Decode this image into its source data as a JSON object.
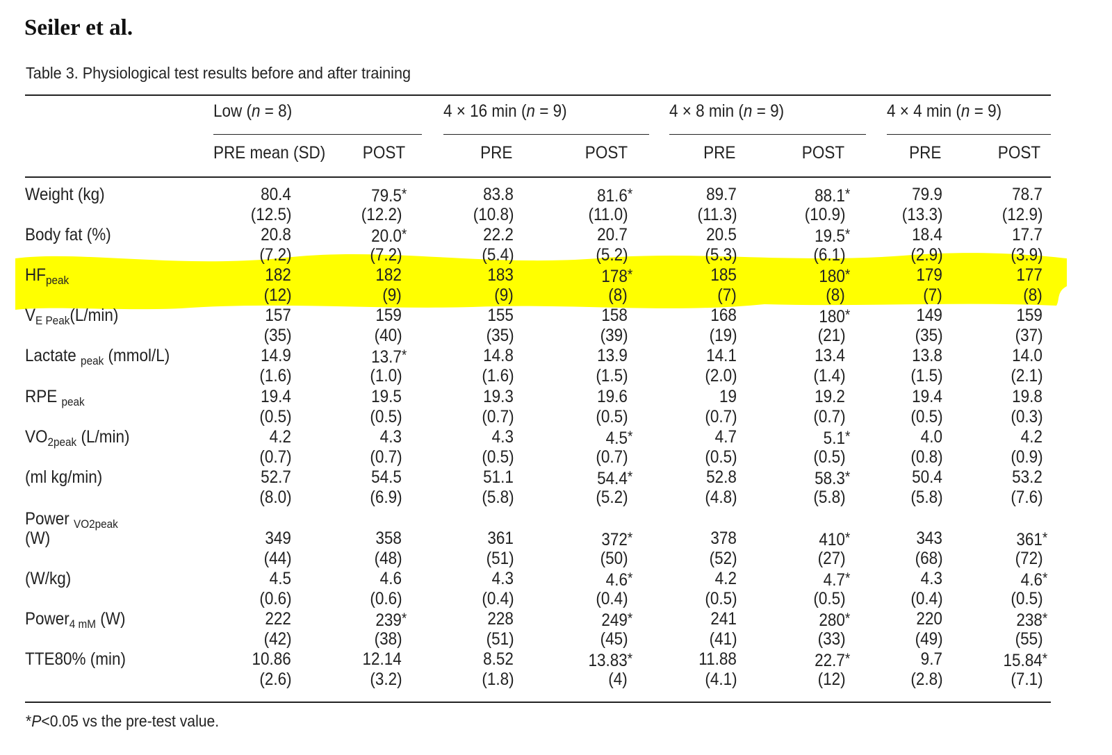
{
  "header": "Seiler et al.",
  "caption": "Table 3.  Physiological test results before and after training",
  "colors": {
    "highlight": "#ffff00",
    "text": "#222222"
  },
  "table": {
    "groups": [
      {
        "prefix": "Low",
        "n": "8"
      },
      {
        "prefix": "4 × 16 min",
        "n": "9"
      },
      {
        "prefix": "4 × 8 min",
        "n": "9"
      },
      {
        "prefix": "4 × 4 min",
        "n": "9"
      }
    ],
    "subheaders": [
      "PRE mean (SD)",
      "POST",
      "PRE",
      "POST",
      "PRE",
      "POST",
      "PRE",
      "POST"
    ],
    "rows": [
      {
        "label": [
          {
            "t": "Weight (kg)"
          }
        ],
        "mean": [
          "80.4",
          "79.5*",
          "83.8",
          "81.6*",
          "89.7",
          "88.1*",
          "79.9",
          "78.7"
        ],
        "sd": [
          "(12.5)",
          "(12.2)",
          "(10.8)",
          "(11.0)",
          "(11.3)",
          "(10.9)",
          "(13.3)",
          "(12.9)"
        ]
      },
      {
        "label": [
          {
            "t": "Body fat (%)"
          }
        ],
        "mean": [
          "20.8",
          "20.0*",
          "22.2",
          "20.7",
          "20.5",
          "19.5*",
          "18.4",
          "17.7"
        ],
        "sd": [
          "(7.2)",
          "(7.2)",
          "(5.4)",
          "(5.2)",
          "(5.3)",
          "(6.1)",
          "(2.9)",
          "(3.9)"
        ]
      },
      {
        "label": [
          {
            "t": "HF"
          },
          {
            "t": "peak",
            "s": "low"
          }
        ],
        "mean": [
          "182",
          "182",
          "183",
          "178*",
          "185",
          "180*",
          "179",
          "177"
        ],
        "sd": [
          "(12)",
          "(9)",
          "(9)",
          "(8)",
          "(7)",
          "(8)",
          "(7)",
          "(8)"
        ]
      },
      {
        "label": [
          {
            "t": "V"
          },
          {
            "t": "E  Peak",
            "s": "low"
          },
          {
            "t": "(L/min)"
          }
        ],
        "mean": [
          "157",
          "159",
          "155",
          "158",
          "168",
          "180*",
          "149",
          "159"
        ],
        "sd": [
          "(35)",
          "(40)",
          "(35)",
          "(39)",
          "(19)",
          "(21)",
          "(35)",
          "(37)"
        ]
      },
      {
        "label": [
          {
            "t": "Lactate "
          },
          {
            "t": "peak",
            "s": "low"
          },
          {
            "t": " (mmol/L)"
          }
        ],
        "mean": [
          "14.9",
          "13.7*",
          "14.8",
          "13.9",
          "14.1",
          "13.4",
          "13.8",
          "14.0"
        ],
        "sd": [
          "(1.6)",
          "(1.0)",
          "(1.6)",
          "(1.5)",
          "(2.0)",
          "(1.4)",
          "(1.5)",
          "(2.1)"
        ]
      },
      {
        "label": [
          {
            "t": "RPE "
          },
          {
            "t": "peak",
            "s": "low"
          }
        ],
        "mean": [
          "19.4",
          "19.5",
          "19.3",
          "19.6",
          "19",
          "19.2",
          "19.4",
          "19.8"
        ],
        "sd": [
          "(0.5)",
          "(0.5)",
          "(0.7)",
          "(0.5)",
          "(0.7)",
          "(0.7)",
          "(0.5)",
          "(0.3)"
        ]
      },
      {
        "label": [
          {
            "t": "VO"
          },
          {
            "t": "2peak",
            "s": "low"
          },
          {
            "t": " (L/min)"
          }
        ],
        "mean": [
          "4.2",
          "4.3",
          "4.3",
          "4.5*",
          "4.7",
          "5.1*",
          "4.0",
          "4.2"
        ],
        "sd": [
          "(0.7)",
          "(0.7)",
          "(0.5)",
          "(0.7)",
          "(0.5)",
          "(0.5)",
          "(0.8)",
          "(0.9)"
        ]
      },
      {
        "label": [
          {
            "t": "(ml kg/min)"
          }
        ],
        "mean": [
          "52.7",
          "54.5",
          "51.1",
          "54.4*",
          "52.8",
          "58.3*",
          "50.4",
          "53.2"
        ],
        "sd": [
          "(8.0)",
          "(6.9)",
          "(5.8)",
          "(5.2)",
          "(4.8)",
          "(5.8)",
          "(5.8)",
          "(7.6)"
        ]
      },
      {
        "label": [
          {
            "t": "Power "
          },
          {
            "t": "VO2peak",
            "s": "low"
          }
        ],
        "label2": "(W)",
        "mean": [
          "349",
          "358",
          "361",
          "372*",
          "378",
          "410*",
          "343",
          "361*"
        ],
        "sd": [
          "(44)",
          "(48)",
          "(51)",
          "(50)",
          "(52)",
          "(27)",
          "(68)",
          "(72)"
        ]
      },
      {
        "label": [
          {
            "t": "(W/kg)"
          }
        ],
        "mean": [
          "4.5",
          "4.6",
          "4.3",
          "4.6*",
          "4.2",
          "4.7*",
          "4.3",
          "4.6*"
        ],
        "sd": [
          "(0.6)",
          "(0.6)",
          "(0.4)",
          "(0.4)",
          "(0.5)",
          "(0.5)",
          "(0.4)",
          "(0.5)"
        ]
      },
      {
        "label": [
          {
            "t": "Power"
          },
          {
            "t": "4 mM",
            "s": "low"
          },
          {
            "t": " (W)"
          }
        ],
        "mean": [
          "222",
          "239*",
          "228",
          "249*",
          "241",
          "280*",
          "220",
          "238*"
        ],
        "sd": [
          "(42)",
          "(38)",
          "(51)",
          "(45)",
          "(41)",
          "(33)",
          "(49)",
          "(55)"
        ]
      },
      {
        "label": [
          {
            "t": "TTE80% (min)"
          }
        ],
        "mean": [
          "10.86",
          "12.14",
          "8.52",
          "13.83*",
          "11.88",
          "22.7*",
          "9.7",
          "15.84*"
        ],
        "sd": [
          "(2.6)",
          "(3.2)",
          "(1.8)",
          "(4)",
          "(4.1)",
          "(12)",
          "(2.8)",
          "(7.1)"
        ]
      }
    ]
  },
  "footnote": {
    "star": "*",
    "p": "P",
    "rest": "<0.05 vs the pre-test value."
  }
}
